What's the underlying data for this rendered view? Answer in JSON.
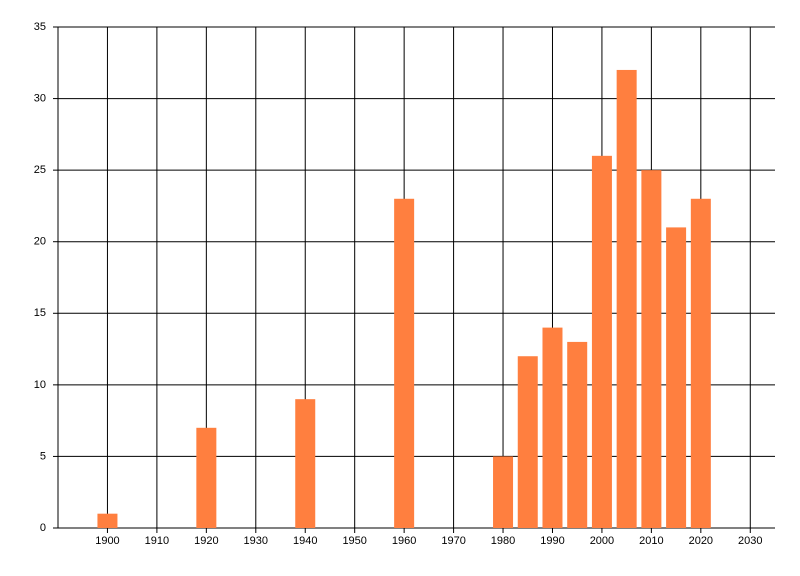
{
  "chart_data": {
    "type": "bar",
    "x": [
      1900,
      1920,
      1940,
      1960,
      1980,
      1985,
      1990,
      1995,
      2000,
      2005,
      2010,
      2015,
      2020
    ],
    "values": [
      1,
      7,
      9,
      23,
      5,
      12,
      14,
      13,
      26,
      32,
      25,
      21,
      23
    ],
    "color": "#ff7f3f",
    "xlim": [
      1890,
      2035
    ],
    "xticks": [
      1900,
      1910,
      1920,
      1930,
      1940,
      1950,
      1960,
      1970,
      1980,
      1990,
      2000,
      2010,
      2020,
      2030
    ],
    "ylim": [
      0,
      35
    ],
    "yticks": [
      0,
      5,
      10,
      15,
      20,
      25,
      30,
      35
    ],
    "grid": true
  }
}
